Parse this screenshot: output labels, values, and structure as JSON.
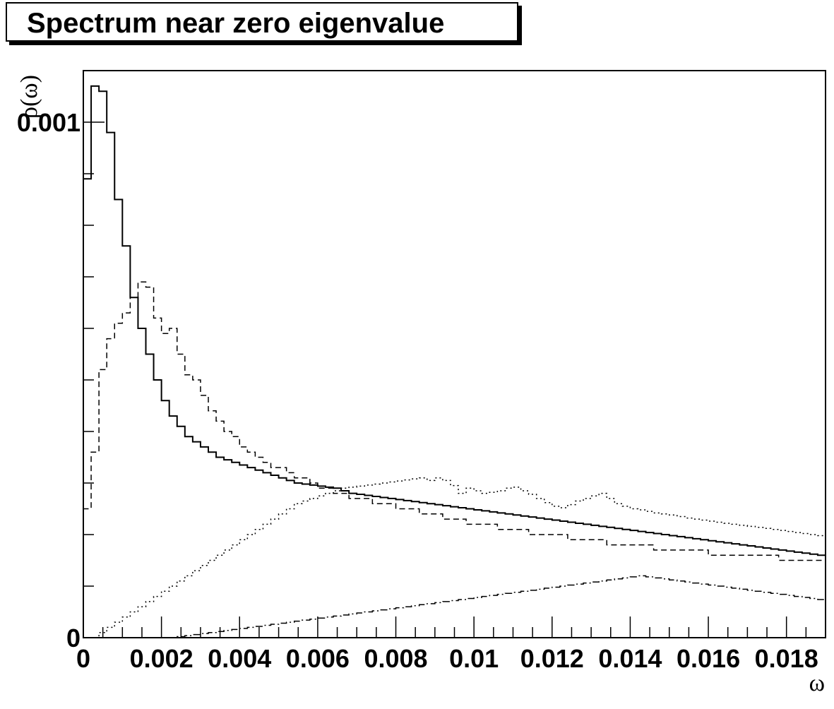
{
  "chart_data": {
    "type": "line",
    "title": "Spectrum near zero eigenvalue",
    "xlabel": "ω",
    "ylabel": "ρ(ω)",
    "xlim": [
      0,
      0.019
    ],
    "ylim": [
      0,
      0.0011
    ],
    "x_ticks": [
      "0",
      "0.002",
      "0.004",
      "0.006",
      "0.008",
      "0.01",
      "0.012",
      "0.014",
      "0.016",
      "0.018"
    ],
    "x_tick_values": [
      0,
      0.002,
      0.004,
      0.006,
      0.008,
      0.01,
      0.012,
      0.014,
      0.016,
      0.018
    ],
    "y_ticks": [
      "0",
      "0.001"
    ],
    "y_tick_values": [
      0,
      0.001
    ],
    "bin_width": 0.0002,
    "grid": false,
    "legend": "none",
    "series": [
      {
        "style": "solid",
        "values": [
          0.00089,
          0.00107,
          0.00106,
          0.00098,
          0.00085,
          0.00076,
          0.00066,
          0.0006,
          0.00055,
          0.0005,
          0.00046,
          0.00043,
          0.00041,
          0.00039,
          0.00038,
          0.00037,
          0.00036,
          0.00035,
          0.000345,
          0.00034,
          0.000335,
          0.00033,
          0.000325,
          0.00032,
          0.000315,
          0.00031,
          0.000305,
          0.0003,
          0.000298,
          0.000296,
          0.000294,
          0.000292,
          0.00029,
          0.000285,
          0.00028,
          0.000278,
          0.000276,
          0.000274,
          0.000272,
          0.00027,
          0.000268,
          0.000266,
          0.000264,
          0.000262,
          0.00026,
          0.000258,
          0.000256,
          0.000254,
          0.000252,
          0.00025,
          0.000248,
          0.000246,
          0.000244,
          0.000242,
          0.00024,
          0.000238,
          0.000236,
          0.000234,
          0.000232,
          0.00023,
          0.000228,
          0.000226,
          0.000224,
          0.000222,
          0.00022,
          0.000218,
          0.000216,
          0.000214,
          0.000212,
          0.00021,
          0.000208,
          0.000206,
          0.000204,
          0.000202,
          0.0002,
          0.000198,
          0.000196,
          0.000194,
          0.000192,
          0.00019,
          0.000188,
          0.000186,
          0.000184,
          0.000182,
          0.00018,
          0.000178,
          0.000176,
          0.000174,
          0.000172,
          0.00017,
          0.000168,
          0.000166,
          0.000164,
          0.000162,
          0.00016
        ]
      },
      {
        "style": "dashed",
        "values": [
          0.00025,
          0.00036,
          0.00052,
          0.00058,
          0.00061,
          0.00063,
          0.00066,
          0.00069,
          0.00068,
          0.00062,
          0.00059,
          0.0006,
          0.00055,
          0.00051,
          0.0005,
          0.00047,
          0.00044,
          0.00042,
          0.0004,
          0.00039,
          0.00037,
          0.00036,
          0.00035,
          0.00034,
          0.00033,
          0.00033,
          0.00032,
          0.00031,
          0.00031,
          0.0003,
          0.00029,
          0.00029,
          0.00028,
          0.00028,
          0.00027,
          0.00027,
          0.00027,
          0.00026,
          0.00026,
          0.00026,
          0.00025,
          0.00025,
          0.00025,
          0.00024,
          0.00024,
          0.00024,
          0.00023,
          0.00023,
          0.00023,
          0.00022,
          0.00022,
          0.00022,
          0.00022,
          0.00021,
          0.00021,
          0.00021,
          0.00021,
          0.0002,
          0.0002,
          0.0002,
          0.0002,
          0.0002,
          0.00019,
          0.00019,
          0.00019,
          0.00019,
          0.00019,
          0.00018,
          0.00018,
          0.00018,
          0.00018,
          0.00018,
          0.00018,
          0.00017,
          0.00017,
          0.00017,
          0.00017,
          0.00017,
          0.00017,
          0.00017,
          0.00016,
          0.00016,
          0.00016,
          0.00016,
          0.00016,
          0.00016,
          0.00016,
          0.00016,
          0.00016,
          0.00015,
          0.00015,
          0.00015,
          0.00015,
          0.00015,
          0.00015
        ]
      },
      {
        "style": "dotted",
        "values": [
          0.0,
          0.0,
          1e-05,
          2e-05,
          3e-05,
          4e-05,
          5e-05,
          6e-05,
          7e-05,
          8e-05,
          9e-05,
          0.0001,
          0.00011,
          0.00012,
          0.00013,
          0.00014,
          0.00015,
          0.00016,
          0.00017,
          0.00018,
          0.00019,
          0.0002,
          0.00021,
          0.00022,
          0.00023,
          0.00024,
          0.00025,
          0.00026,
          0.000265,
          0.00027,
          0.000275,
          0.00028,
          0.000285,
          0.00029,
          0.000292,
          0.000294,
          0.000296,
          0.000298,
          0.0003,
          0.000302,
          0.000304,
          0.000306,
          0.000308,
          0.00031,
          0.000305,
          0.00031,
          0.000305,
          0.000295,
          0.00028,
          0.00029,
          0.000285,
          0.00028,
          0.000282,
          0.000285,
          0.00029,
          0.000292,
          0.000285,
          0.000278,
          0.00027,
          0.000262,
          0.000255,
          0.000252,
          0.000258,
          0.000265,
          0.00027,
          0.000275,
          0.00028,
          0.00027,
          0.00026,
          0.000255,
          0.00025,
          0.000248,
          0.000245,
          0.000242,
          0.00024,
          0.000238,
          0.000235,
          0.000232,
          0.00023,
          0.000228,
          0.000226,
          0.000224,
          0.000222,
          0.00022,
          0.000218,
          0.000216,
          0.000214,
          0.000212,
          0.00021,
          0.000208,
          0.000206,
          0.000204,
          0.000202,
          0.0002,
          0.000198
        ]
      },
      {
        "style": "dash-dot",
        "values": [
          0.0,
          0.0,
          0.0,
          0.0,
          0.0,
          0.0,
          0.0,
          0.0,
          0.0,
          0.0,
          0.0,
          0.0,
          2e-06,
          4e-06,
          6e-06,
          8e-06,
          1e-05,
          1.2e-05,
          1.4e-05,
          1.6e-05,
          1.8e-05,
          2e-05,
          2.2e-05,
          2.4e-05,
          2.6e-05,
          2.8e-05,
          3e-05,
          3.2e-05,
          3.4e-05,
          3.6e-05,
          3.8e-05,
          4e-05,
          4.2e-05,
          4.4e-05,
          4.6e-05,
          4.8e-05,
          5e-05,
          5.2e-05,
          5.4e-05,
          5.6e-05,
          5.8e-05,
          6e-05,
          6.2e-05,
          6.4e-05,
          6.6e-05,
          6.8e-05,
          7e-05,
          7.2e-05,
          7.4e-05,
          7.6e-05,
          7.8e-05,
          8e-05,
          8.2e-05,
          8.4e-05,
          8.6e-05,
          8.8e-05,
          9e-05,
          9.2e-05,
          9.4e-05,
          9.6e-05,
          9.8e-05,
          0.0001,
          0.000102,
          0.000104,
          0.000106,
          0.000108,
          0.00011,
          0.000112,
          0.000114,
          0.000116,
          0.000118,
          0.00012,
          0.000118,
          0.000116,
          0.000114,
          0.000112,
          0.00011,
          0.000108,
          0.000106,
          0.000104,
          0.000102,
          0.0001,
          9.8e-05,
          9.6e-05,
          9.4e-05,
          9.2e-05,
          9e-05,
          8.8e-05,
          8.6e-05,
          8.4e-05,
          8.2e-05,
          8e-05,
          7.8e-05,
          7.6e-05,
          7.4e-05
        ]
      }
    ]
  }
}
